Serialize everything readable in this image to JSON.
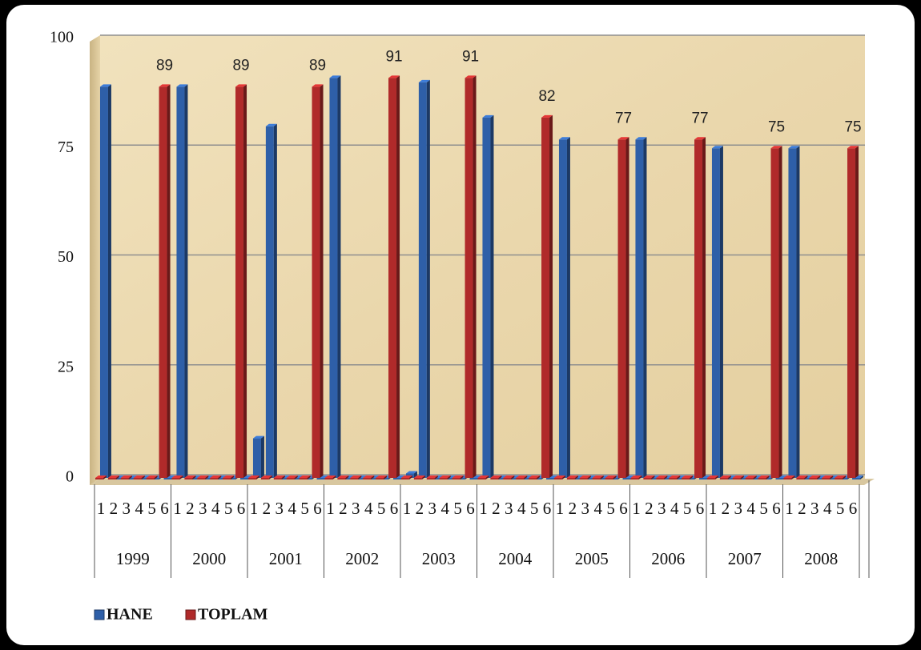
{
  "chart_data": {
    "type": "bar",
    "groups": [
      "1999",
      "2000",
      "2001",
      "2002",
      "2003",
      "2004",
      "2005",
      "2006",
      "2007",
      "2008"
    ],
    "subcategories": [
      "1",
      "2",
      "3",
      "4",
      "5",
      "6"
    ],
    "series": [
      {
        "name": "HANE",
        "color": "#2e5fa8",
        "data_labels": false,
        "values": [
          89,
          0,
          0,
          0,
          0,
          0,
          89,
          0,
          0,
          0,
          0,
          0,
          9,
          80,
          0,
          0,
          0,
          0,
          91,
          0,
          0,
          0,
          0,
          0,
          1,
          90,
          0,
          0,
          0,
          0,
          82,
          0,
          0,
          0,
          0,
          0,
          77,
          0,
          0,
          0,
          0,
          0,
          77,
          0,
          0,
          0,
          0,
          0,
          75,
          0,
          0,
          0,
          0,
          0,
          75,
          0,
          0,
          0,
          0,
          0
        ]
      },
      {
        "name": "TOPLAM",
        "color": "#b02a2a",
        "data_labels": true,
        "values": [
          0,
          0,
          0,
          0,
          0,
          89,
          0,
          0,
          0,
          0,
          0,
          89,
          0,
          0,
          0,
          0,
          0,
          89,
          0,
          0,
          0,
          0,
          0,
          91,
          0,
          0,
          0,
          0,
          0,
          91,
          0,
          0,
          0,
          0,
          0,
          82,
          0,
          0,
          0,
          0,
          0,
          77,
          0,
          0,
          0,
          0,
          0,
          77,
          0,
          0,
          0,
          0,
          0,
          75,
          0,
          0,
          0,
          0,
          0,
          75
        ]
      }
    ],
    "ylim": [
      0,
      100
    ],
    "yticks": [
      0,
      25,
      50,
      75,
      100
    ],
    "grid": true,
    "legend": "bottom-left"
  }
}
